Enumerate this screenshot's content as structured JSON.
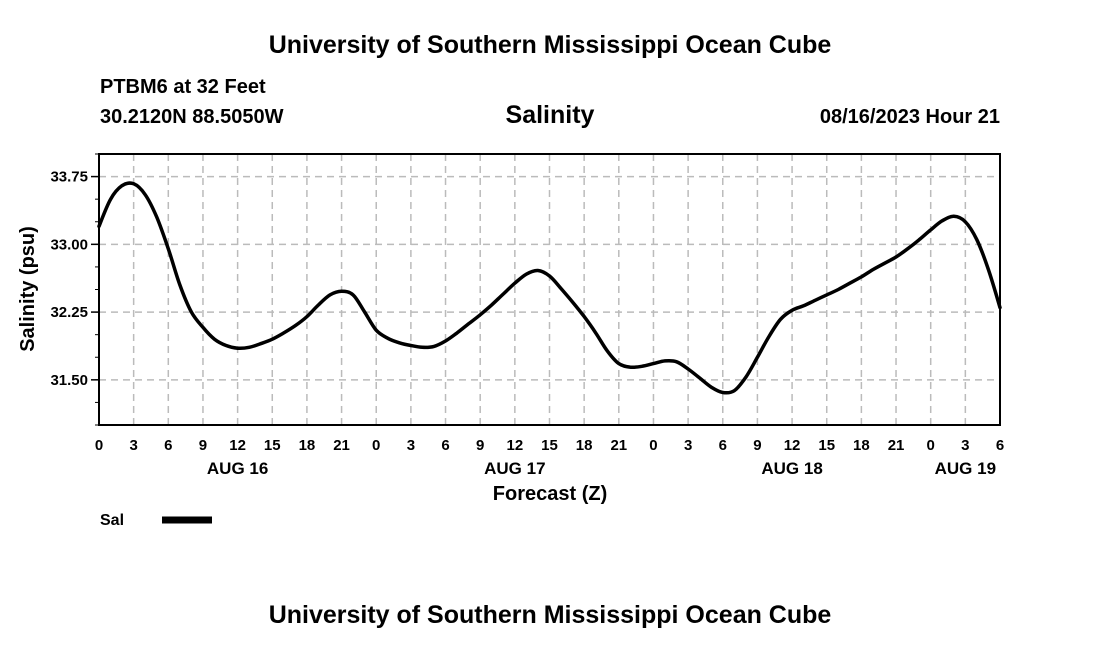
{
  "header": {
    "title": "University of Southern Mississippi Ocean Cube",
    "station": "PTBM6 at 32 Feet",
    "coordinates": "30.2120N  88.5050W",
    "datetime": "08/16/2023 Hour 21"
  },
  "footer": {
    "title": "University of Southern Mississippi Ocean Cube"
  },
  "chart_data": {
    "type": "line",
    "title": "Salinity",
    "xlabel": "Forecast (Z)",
    "ylabel": "Salinity (psu)",
    "xlim": [
      0,
      78
    ],
    "ylim": [
      31.0,
      34.0
    ],
    "grid": true,
    "y_ticks": [
      31.5,
      32.25,
      33.0,
      33.75
    ],
    "y_tick_labels": [
      "31.50",
      "32.25",
      "33.00",
      "33.75"
    ],
    "x_ticks": [
      0,
      3,
      6,
      9,
      12,
      15,
      18,
      21,
      24,
      27,
      30,
      33,
      36,
      39,
      42,
      45,
      48,
      51,
      54,
      57,
      60,
      63,
      66,
      69,
      72,
      75,
      78
    ],
    "x_tick_labels": [
      "0",
      "3",
      "6",
      "9",
      "12",
      "15",
      "18",
      "21",
      "0",
      "3",
      "6",
      "9",
      "12",
      "15",
      "18",
      "21",
      "0",
      "3",
      "6",
      "9",
      "12",
      "15",
      "18",
      "21",
      "0",
      "3",
      "6"
    ],
    "date_labels": [
      {
        "label": "AUG 16",
        "hour": 12
      },
      {
        "label": "AUG 17",
        "hour": 36
      },
      {
        "label": "AUG 18",
        "hour": 60
      },
      {
        "label": "AUG 19",
        "hour": 75
      }
    ],
    "legend": {
      "label": "Sal",
      "placement": "bottom-left"
    },
    "series": [
      {
        "name": "Sal",
        "x": [
          0,
          1,
          2,
          3,
          4,
          5,
          6,
          7,
          8,
          9,
          10,
          11,
          12,
          13,
          14,
          15,
          16,
          17,
          18,
          19,
          20,
          21,
          22,
          23,
          24,
          25,
          26,
          27,
          28,
          29,
          30,
          31,
          32,
          33,
          34,
          35,
          36,
          37,
          38,
          39,
          40,
          41,
          42,
          43,
          44,
          45,
          46,
          47,
          48,
          49,
          50,
          51,
          52,
          53,
          54,
          55,
          56,
          57,
          58,
          59,
          60,
          61,
          62,
          63,
          64,
          65,
          66,
          67,
          68,
          69,
          70,
          71,
          72,
          73,
          74,
          75,
          76,
          77,
          78
        ],
        "values": [
          33.2,
          33.5,
          33.65,
          33.67,
          33.55,
          33.3,
          32.95,
          32.55,
          32.25,
          32.08,
          31.95,
          31.88,
          31.85,
          31.86,
          31.9,
          31.95,
          32.02,
          32.1,
          32.2,
          32.33,
          32.44,
          32.48,
          32.44,
          32.25,
          32.05,
          31.96,
          31.91,
          31.88,
          31.86,
          31.87,
          31.93,
          32.02,
          32.12,
          32.22,
          32.33,
          32.45,
          32.57,
          32.67,
          32.71,
          32.65,
          32.51,
          32.36,
          32.2,
          32.02,
          31.82,
          31.68,
          31.64,
          31.65,
          31.68,
          31.71,
          31.7,
          31.62,
          31.52,
          31.42,
          31.36,
          31.38,
          31.53,
          31.75,
          31.98,
          32.17,
          32.27,
          32.32,
          32.38,
          32.44,
          32.5,
          32.57,
          32.64,
          32.72,
          32.79,
          32.86,
          32.95,
          33.05,
          33.16,
          33.26,
          33.31,
          33.25,
          33.05,
          32.72,
          32.3
        ]
      }
    ]
  }
}
